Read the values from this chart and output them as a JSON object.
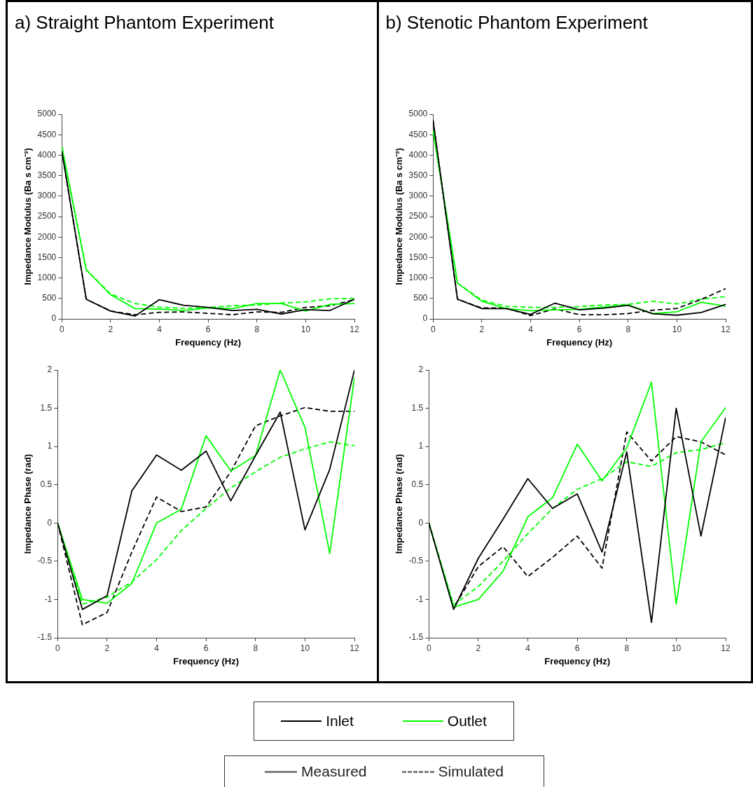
{
  "chart_data": [
    {
      "type": "line",
      "title": "a) Straight Phantom Experiment",
      "xlabel": "Frequency (Hz)",
      "ylabel": "Impedance Modulus (Ba s cm⁻³)",
      "x": [
        0,
        1,
        2,
        3,
        4,
        5,
        6,
        7,
        8,
        9,
        10,
        11,
        12
      ],
      "xlim": [
        0,
        12
      ],
      "xticks": [
        0,
        2,
        4,
        6,
        8,
        10,
        12
      ],
      "ylim": [
        0,
        5000
      ],
      "yticks": [
        0,
        500,
        1000,
        1500,
        2000,
        2500,
        3000,
        3500,
        4000,
        4500,
        5000
      ],
      "grid": false,
      "legend": "bottom",
      "annotations": [
        "Measured",
        "Simulated"
      ],
      "series": [
        {
          "name": "Inlet",
          "color": "#000000",
          "line_style": "solid",
          "values": [
            4100,
            480,
            190,
            70,
            470,
            330,
            280,
            205,
            235,
            120,
            225,
            205,
            480
          ]
        },
        {
          "name": "Outlet",
          "color": "#00ff00",
          "line_style": "solid",
          "values": [
            4200,
            1200,
            590,
            250,
            240,
            205,
            270,
            250,
            375,
            375,
            190,
            355,
            375
          ]
        },
        {
          "color": "#000000",
          "line_style": "dashed",
          "values": [
            4100,
            480,
            190,
            100,
            160,
            170,
            135,
            100,
            170,
            160,
            280,
            320,
            470
          ]
        },
        {
          "color": "#00ff00",
          "line_style": "dashed",
          "values": [
            4200,
            1200,
            610,
            375,
            290,
            255,
            280,
            320,
            340,
            385,
            415,
            490,
            500
          ]
        }
      ]
    },
    {
      "type": "line",
      "xlabel": "Frequency (Hz)",
      "ylabel": "Impedance Phase (rad)",
      "x": [
        0,
        1,
        2,
        3,
        4,
        5,
        6,
        7,
        8,
        9,
        10,
        11,
        12
      ],
      "xlim": [
        0,
        12
      ],
      "xticks": [
        0,
        2,
        4,
        6,
        8,
        10,
        12
      ],
      "ylim": [
        -1.5,
        2
      ],
      "yticks": [
        -1.5,
        -1,
        -0.5,
        0,
        0.5,
        1,
        1.5,
        2
      ],
      "grid": false,
      "series": [
        {
          "color": "#000000",
          "line_style": "solid",
          "values": [
            0,
            -1.13,
            -0.95,
            0.42,
            0.89,
            0.69,
            0.94,
            0.29,
            0.88,
            1.45,
            -0.09,
            0.7,
            2.0
          ]
        },
        {
          "color": "#00ff00",
          "line_style": "solid",
          "values": [
            0,
            -1.0,
            -1.05,
            -0.79,
            0.0,
            0.18,
            1.14,
            0.68,
            0.88,
            2.0,
            1.25,
            -0.4,
            1.9
          ]
        },
        {
          "color": "#000000",
          "line_style": "dashed",
          "values": [
            0,
            -1.33,
            -1.17,
            -0.38,
            0.34,
            0.15,
            0.21,
            0.67,
            1.27,
            1.4,
            1.51,
            1.46,
            1.46
          ]
        },
        {
          "color": "#00ff00",
          "line_style": "dashed",
          "values": [
            0,
            -1.06,
            -0.97,
            -0.77,
            -0.48,
            -0.1,
            0.19,
            0.46,
            0.67,
            0.86,
            0.97,
            1.06,
            1.01
          ]
        }
      ]
    },
    {
      "type": "line",
      "title": "b) Stenotic Phantom Experiment",
      "xlabel": "Frequency (Hz)",
      "ylabel": "Impedance Modulus (Ba s cm⁻³)",
      "x": [
        0,
        1,
        2,
        3,
        4,
        5,
        6,
        7,
        8,
        9,
        10,
        11,
        12
      ],
      "xlim": [
        0,
        12
      ],
      "xticks": [
        0,
        2,
        4,
        6,
        8,
        10,
        12
      ],
      "ylim": [
        0,
        5000
      ],
      "yticks": [
        0,
        500,
        1000,
        1500,
        2000,
        2500,
        3000,
        3500,
        4000,
        4500,
        5000
      ],
      "grid": false,
      "series": [
        {
          "color": "#000000",
          "line_style": "solid",
          "values": [
            4850,
            480,
            250,
            250,
            110,
            385,
            220,
            265,
            330,
            125,
            90,
            155,
            355
          ]
        },
        {
          "color": "#00ff00",
          "line_style": "solid",
          "values": [
            4600,
            875,
            430,
            250,
            200,
            220,
            235,
            290,
            340,
            130,
            175,
            405,
            310
          ]
        },
        {
          "color": "#000000",
          "line_style": "dashed",
          "values": [
            4850,
            480,
            265,
            265,
            80,
            245,
            100,
            100,
            130,
            210,
            255,
            475,
            740
          ]
        },
        {
          "color": "#00ff00",
          "line_style": "dashed",
          "values": [
            4600,
            875,
            455,
            310,
            280,
            280,
            300,
            340,
            355,
            430,
            365,
            480,
            545
          ]
        }
      ]
    },
    {
      "type": "line",
      "xlabel": "Frequency (Hz)",
      "ylabel": "Impedance Phase (rad)",
      "x": [
        0,
        1,
        2,
        3,
        4,
        5,
        6,
        7,
        8,
        9,
        10,
        11,
        12
      ],
      "xlim": [
        0,
        12
      ],
      "xticks": [
        0,
        2,
        4,
        6,
        8,
        10,
        12
      ],
      "ylim": [
        -1.5,
        2
      ],
      "yticks": [
        -1.5,
        -1,
        -0.5,
        0,
        0.5,
        1,
        1.5,
        2
      ],
      "grid": false,
      "series": [
        {
          "color": "#000000",
          "line_style": "solid",
          "values": [
            0,
            -1.13,
            -0.46,
            0.05,
            0.58,
            0.19,
            0.38,
            -0.38,
            0.93,
            -1.3,
            1.5,
            -0.17,
            1.38
          ]
        },
        {
          "color": "#00ff00",
          "line_style": "solid",
          "values": [
            0,
            -1.1,
            -1.0,
            -0.63,
            0.08,
            0.33,
            1.03,
            0.55,
            0.98,
            1.84,
            -1.06,
            1.06,
            1.51
          ]
        },
        {
          "color": "#000000",
          "line_style": "dashed",
          "values": [
            0,
            -1.11,
            -0.57,
            -0.31,
            -0.7,
            -0.45,
            -0.17,
            -0.59,
            1.19,
            0.81,
            1.13,
            1.06,
            0.89
          ]
        },
        {
          "color": "#00ff00",
          "line_style": "dashed",
          "values": [
            0,
            -1.07,
            -0.83,
            -0.5,
            -0.14,
            0.19,
            0.44,
            0.58,
            0.8,
            0.74,
            0.92,
            0.96,
            1.05
          ]
        }
      ]
    }
  ]
}
